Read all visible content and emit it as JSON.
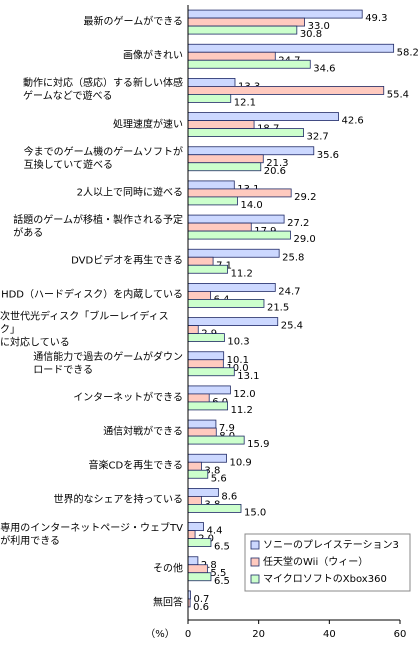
{
  "chart_data": {
    "type": "bar",
    "orientation": "horizontal",
    "x_label": "（%）",
    "categories": [
      "最新のゲームができる",
      "画像がきれい",
      "動作に対応（感応）する新しい体感\nゲームなどで遊べる",
      "処理速度が速い",
      "今までのゲーム機のゲームソフトが\n互換していて遊べる",
      "2人以上で同時に遊べる",
      "話題のゲームが移植・製作される予定\nがある",
      "DVDビデオを再生できる",
      "HDD（ハードディスク）を内蔵している",
      "次世代光ディスク「ブルーレイディスク」\nに対応している",
      "通信能力で過去のゲームがダウン\nロードできる",
      "インターネットができる",
      "通信対戦ができる",
      "音楽CDを再生できる",
      "世界的なシェアを持っている",
      "専用のインターネットページ・ウェブTV\nが利用できる",
      "その他",
      "無回答"
    ],
    "series": [
      {
        "name": "ソニーのプレイステーション3",
        "color": "#ccd8ff",
        "values": [
          49.3,
          58.2,
          13.3,
          42.6,
          35.6,
          13.1,
          27.2,
          25.8,
          24.7,
          25.4,
          10.1,
          12.0,
          7.9,
          10.9,
          8.6,
          4.4,
          2.8,
          0.7
        ],
        "value_labels": [
          "49.3",
          "58.2",
          "13.3",
          "42.6",
          "35.6",
          "13.1",
          "27.2",
          "25.8",
          "24.7",
          "25.4",
          "10.1",
          "12.0",
          "7.9",
          "10.9",
          "8.6",
          "4.4",
          "2.8",
          "0.7"
        ]
      },
      {
        "name": "任天堂のWii（ウィー）",
        "color": "#ffcabf",
        "values": [
          33.0,
          24.7,
          55.4,
          18.7,
          21.3,
          29.2,
          17.9,
          7.1,
          6.4,
          2.9,
          10.0,
          6.0,
          8.0,
          3.8,
          3.8,
          2.0,
          5.5,
          0.6
        ],
        "value_labels": [
          "33.0",
          "24.7",
          "55.4",
          "18.7",
          "21.3",
          "29.2",
          "17.9",
          "7.1",
          "6.4",
          "2.9",
          "10.0",
          "6.0",
          "8.0",
          "3.8",
          "3.8",
          "2.0",
          "5.5",
          "0.6"
        ]
      },
      {
        "name": "マイクロソフトのXbox360",
        "color": "#ccffcc",
        "values": [
          30.8,
          34.6,
          12.1,
          32.7,
          20.6,
          14.0,
          29.0,
          11.2,
          21.5,
          10.3,
          13.1,
          11.2,
          15.9,
          5.6,
          15.0,
          6.5,
          6.5,
          null
        ],
        "value_labels": [
          "30.8",
          "34.6",
          "12.1",
          "32.7",
          "20.6",
          "14.0",
          "29.0",
          "11.2",
          "21.5",
          "10.3",
          "13.1",
          "11.2",
          "15.9",
          "5.6",
          "15.0",
          "6.5",
          "6.5",
          null
        ]
      }
    ],
    "xlim": [
      0,
      60
    ],
    "xticks": [
      0,
      20,
      40,
      60
    ]
  }
}
